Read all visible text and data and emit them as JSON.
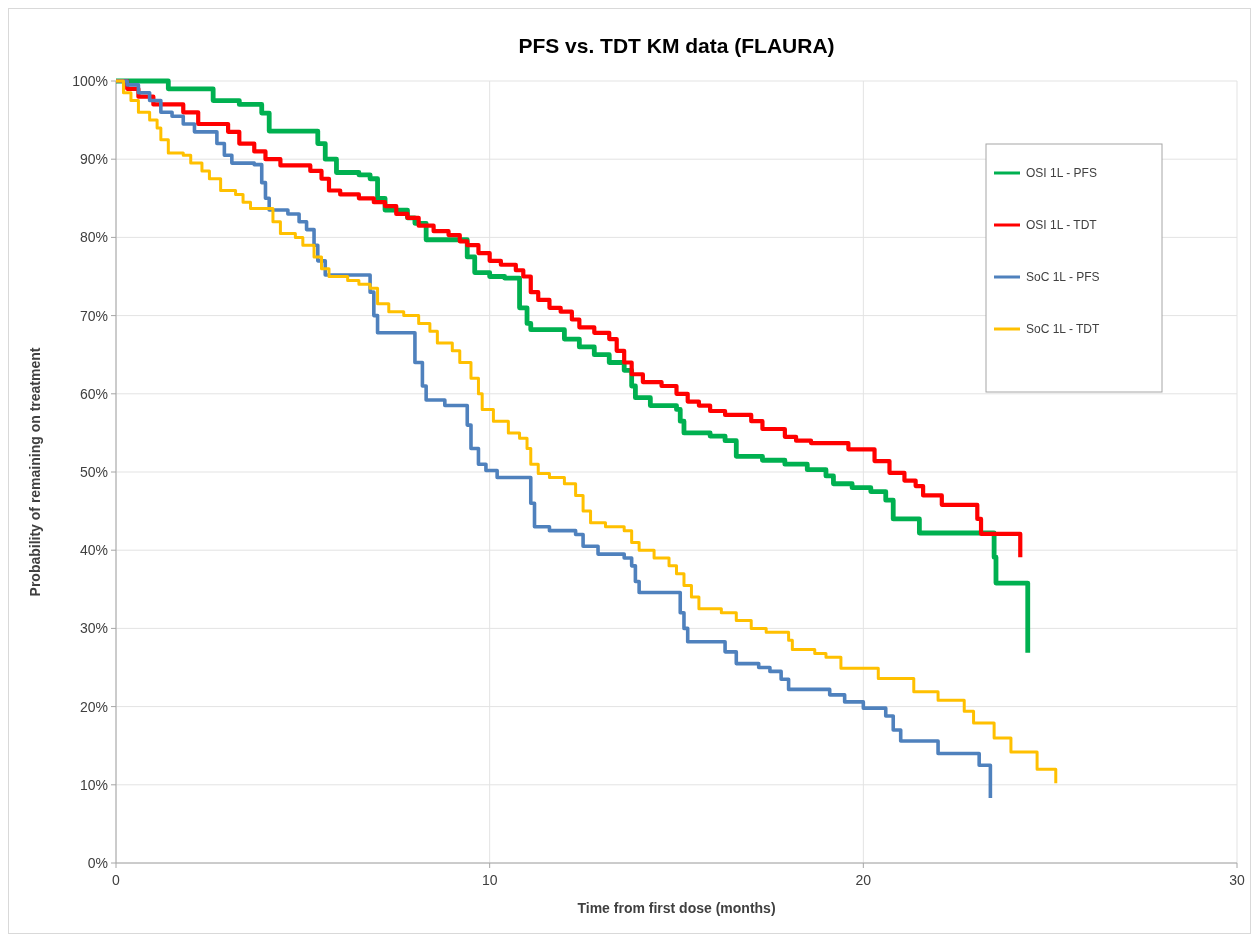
{
  "chart_data": {
    "type": "step",
    "title": "PFS vs. TDT KM data (FLAURA)",
    "xlabel": "Time from first dose (months)",
    "ylabel": "Probability of remaining on treatment",
    "xlim": [
      0,
      30
    ],
    "xticks": [
      0,
      10,
      20,
      30
    ],
    "ylim": [
      0,
      100
    ],
    "yticks": [
      {
        "value": 0,
        "label": "0%"
      },
      {
        "value": 10,
        "label": "10%"
      },
      {
        "value": 20,
        "label": "20%"
      },
      {
        "value": 30,
        "label": "30%"
      },
      {
        "value": 40,
        "label": "40%"
      },
      {
        "value": 50,
        "label": "50%"
      },
      {
        "value": 60,
        "label": "60%"
      },
      {
        "value": 70,
        "label": "70%"
      },
      {
        "value": 80,
        "label": "80%"
      },
      {
        "value": 90,
        "label": "90%"
      },
      {
        "value": 100,
        "label": "100%"
      }
    ],
    "grid": true,
    "legend": "top right",
    "series": [
      {
        "name": "OSI 1L - PFS",
        "color": "#00b050",
        "x": [
          0,
          1.4,
          2.6,
          3.3,
          3.9,
          4.1,
          5.4,
          5.6,
          5.9,
          6.5,
          6.8,
          7.0,
          7.2,
          7.8,
          8.0,
          8.3,
          9.4,
          9.6,
          10.0,
          10.4,
          10.8,
          11.0,
          11.1,
          12.0,
          12.4,
          12.8,
          13.2,
          13.6,
          13.8,
          13.9,
          14.3,
          15.0,
          15.1,
          15.2,
          15.9,
          16.3,
          16.6,
          17.3,
          17.9,
          18.5,
          19.0,
          19.2,
          19.7,
          20.2,
          20.6,
          20.8,
          21.5,
          23.5,
          23.55,
          24.4
        ],
        "values": [
          100,
          99,
          97.5,
          97,
          95.9,
          93.6,
          92,
          90,
          88.3,
          88,
          87.5,
          85,
          83.5,
          82.5,
          81.8,
          79.7,
          77.5,
          75.5,
          75,
          74.8,
          71,
          69,
          68.2,
          67,
          66,
          65,
          64,
          63,
          61,
          59.5,
          58.5,
          58,
          56.5,
          55,
          54.6,
          54,
          52,
          51.5,
          51,
          50.3,
          49.5,
          48.5,
          48,
          47.5,
          46.4,
          44,
          42.2,
          39.1,
          35.8,
          26.9
        ]
      },
      {
        "name": "OSI 1L - TDT",
        "color": "#ff0000",
        "x": [
          0,
          0.3,
          0.6,
          1.0,
          1.8,
          2.2,
          3.0,
          3.3,
          3.7,
          4.0,
          4.4,
          5.2,
          5.5,
          5.7,
          6.0,
          6.5,
          6.9,
          7.2,
          7.5,
          7.8,
          8.1,
          8.5,
          8.9,
          9.2,
          9.4,
          9.7,
          10.0,
          10.3,
          10.7,
          10.9,
          11.1,
          11.3,
          11.6,
          11.9,
          12.2,
          12.4,
          12.8,
          13.2,
          13.4,
          13.6,
          13.8,
          14.1,
          14.6,
          15.0,
          15.3,
          15.6,
          15.9,
          16.3,
          17.0,
          17.3,
          17.9,
          18.2,
          18.6,
          19.6,
          20.3,
          20.7,
          21.1,
          21.4,
          21.6,
          22.1,
          23.05,
          23.15,
          24.2
        ],
        "values": [
          100,
          99,
          98,
          97,
          96,
          94.5,
          93.5,
          92,
          91,
          90,
          89.2,
          88.5,
          87.5,
          86,
          85.5,
          85,
          84.5,
          84,
          83,
          82.5,
          81.5,
          80.8,
          80.3,
          79.5,
          79,
          78,
          77,
          76.5,
          75.8,
          75,
          73,
          72,
          71,
          70.5,
          69.5,
          68.5,
          67.8,
          67,
          65.5,
          64,
          62.5,
          61.5,
          61,
          60,
          59,
          58.5,
          57.8,
          57.3,
          56.5,
          55.5,
          54.5,
          54,
          53.7,
          52.9,
          51.4,
          49.9,
          48.9,
          48.2,
          47,
          45.8,
          44,
          42.1,
          39.1
        ]
      },
      {
        "name": "SoC 1L - PFS",
        "color": "#4f81bd",
        "x": [
          0,
          0.3,
          0.6,
          0.9,
          1.2,
          1.5,
          1.8,
          2.1,
          2.7,
          2.9,
          3.1,
          3.7,
          3.9,
          4.0,
          4.1,
          4.6,
          4.9,
          5.1,
          5.3,
          5.4,
          5.6,
          6.8,
          6.9,
          7.0,
          8.0,
          8.2,
          8.3,
          8.8,
          9.4,
          9.5,
          9.7,
          9.9,
          10.2,
          11.1,
          11.2,
          11.6,
          12.3,
          12.5,
          12.9,
          13.6,
          13.8,
          13.9,
          14.0,
          15.1,
          15.2,
          15.3,
          16.3,
          16.6,
          17.2,
          17.5,
          17.8,
          18.0,
          19.1,
          19.5,
          20.0,
          20.6,
          20.8,
          21.0,
          22.0,
          23.1,
          23.4
        ],
        "values": [
          100,
          99.5,
          98.5,
          97.5,
          96,
          95.5,
          94.5,
          93.5,
          92,
          90.5,
          89.5,
          89.3,
          87,
          85,
          83.5,
          83,
          82,
          81,
          79,
          77,
          75.2,
          73,
          70,
          67.8,
          64,
          61,
          59.2,
          58.5,
          56,
          53,
          51,
          50.2,
          49.3,
          46,
          43,
          42.5,
          42,
          40.5,
          39.5,
          39,
          38,
          36,
          34.6,
          32,
          30,
          28.3,
          27,
          25.5,
          25,
          24.5,
          23.5,
          22.2,
          21.5,
          20.6,
          19.8,
          18.8,
          17,
          15.6,
          14,
          12.5,
          8.3
        ]
      },
      {
        "name": "SoC 1L - TDT",
        "color": "#ffc000",
        "x": [
          0,
          0.2,
          0.4,
          0.6,
          0.9,
          1.1,
          1.2,
          1.4,
          1.8,
          2.0,
          2.3,
          2.5,
          2.8,
          3.2,
          3.4,
          3.6,
          4.2,
          4.4,
          4.8,
          5.0,
          5.3,
          5.5,
          5.7,
          6.2,
          6.5,
          6.8,
          7.0,
          7.3,
          7.7,
          8.1,
          8.4,
          8.6,
          9.0,
          9.2,
          9.5,
          9.7,
          9.8,
          10.1,
          10.5,
          10.8,
          11.0,
          11.1,
          11.3,
          11.6,
          12.0,
          12.3,
          12.5,
          12.7,
          13.1,
          13.6,
          13.8,
          14.0,
          14.4,
          14.8,
          15.0,
          15.2,
          15.4,
          15.6,
          16.2,
          16.6,
          17.0,
          17.4,
          18.0,
          18.1,
          18.7,
          19.0,
          19.4,
          20.4,
          21.35,
          22.0,
          22.7,
          22.95,
          23.5,
          23.95,
          24.65,
          25.15
        ],
        "values": [
          100,
          98.5,
          97.5,
          96,
          95,
          94,
          92.5,
          90.8,
          90.5,
          89.5,
          88.5,
          87.5,
          86,
          85.5,
          84.5,
          83.7,
          82,
          80.5,
          80,
          79,
          77.5,
          76,
          75,
          74.5,
          74,
          73.5,
          71.5,
          70.5,
          70,
          69,
          68,
          66.5,
          65.5,
          64,
          62,
          60,
          58,
          56.5,
          55,
          54.3,
          53,
          51,
          49.8,
          49.3,
          48.5,
          47,
          45,
          43.5,
          43,
          42.5,
          41,
          40,
          39,
          38,
          37,
          35.5,
          34,
          32.5,
          32,
          31,
          30,
          29.5,
          28.5,
          27.3,
          26.8,
          26.3,
          24.9,
          23.6,
          21.9,
          20.8,
          19.4,
          17.9,
          16,
          14.2,
          12,
          10.2
        ]
      }
    ]
  }
}
